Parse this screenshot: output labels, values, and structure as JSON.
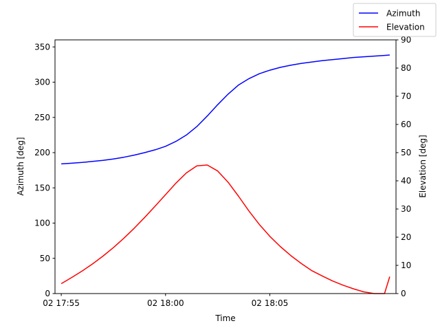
{
  "chart_data": {
    "type": "line",
    "title": "",
    "xlabel": "Time",
    "ylabel_left": "Azimuth [deg]",
    "ylabel_right": "Elevation [deg]",
    "x_ticks": [
      "02 17:55",
      "02 18:00",
      "02 18:05"
    ],
    "x_tick_minutes": [
      0,
      5,
      10
    ],
    "xlim_minutes": [
      -0.3,
      16.05
    ],
    "x_minutes": [
      0,
      0.5,
      1,
      1.5,
      2,
      2.5,
      3,
      3.5,
      4,
      4.5,
      5,
      5.5,
      6,
      6.5,
      7,
      7.5,
      8,
      8.5,
      9,
      9.5,
      10,
      10.5,
      11,
      11.5,
      12,
      12.5,
      13,
      13.5,
      14,
      14.5,
      15,
      15.5,
      15.75
    ],
    "ylim_left": [
      0,
      360
    ],
    "yticks_left": [
      0,
      50,
      100,
      150,
      200,
      250,
      300,
      350
    ],
    "ylim_right": [
      0,
      90
    ],
    "yticks_right": [
      0,
      10,
      20,
      30,
      40,
      50,
      60,
      70,
      80,
      90
    ],
    "grid": false,
    "legend_position": "top-right",
    "series": [
      {
        "name": "Azimuth",
        "axis": "left",
        "color": "#0000ff",
        "values": [
          184,
          185,
          186,
          187.5,
          189,
          191,
          193.5,
          196.5,
          200,
          204,
          209,
          216,
          225,
          237,
          252,
          268,
          283,
          296,
          305,
          312,
          317,
          321,
          324,
          326.5,
          328.5,
          330.5,
          332,
          333.5,
          335,
          336,
          337,
          338,
          338.5
        ]
      },
      {
        "name": "Elevation",
        "axis": "right",
        "color": "#ff0000",
        "values": [
          3.5,
          5.7,
          8,
          10.5,
          13.3,
          16.3,
          19.6,
          23.2,
          27,
          31,
          35.1,
          39.2,
          42.8,
          45.3,
          45.6,
          43.5,
          39.5,
          34.5,
          29.3,
          24.5,
          20.3,
          16.7,
          13.5,
          10.7,
          8.2,
          6.3,
          4.5,
          3.0,
          1.7,
          0.6,
          0.0,
          0.0,
          6.0
        ]
      }
    ]
  }
}
